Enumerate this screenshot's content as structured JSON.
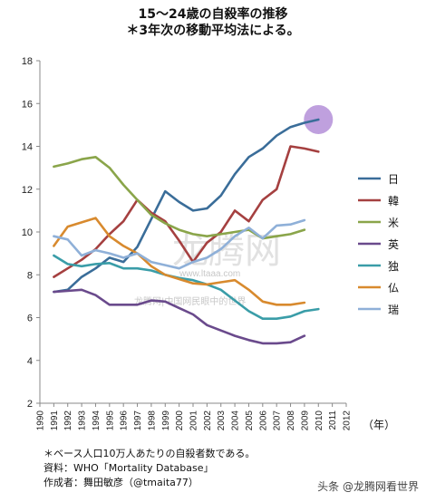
{
  "chart_data": {
    "type": "line",
    "title": "15～24歳の自殺率の推移",
    "subtitle": "＊3年次の移動平均法による。",
    "xlabel": "（年）",
    "ylabel": "",
    "x": [
      1990,
      1991,
      1992,
      1993,
      1994,
      1995,
      1996,
      1997,
      1998,
      1999,
      2000,
      2001,
      2002,
      2003,
      2004,
      2005,
      2006,
      2007,
      2008,
      2009,
      2010,
      2011,
      2012
    ],
    "xlim": [
      1990,
      2012
    ],
    "ylim": [
      2,
      18
    ],
    "yticks": [
      2,
      4,
      6,
      8,
      10,
      12,
      14,
      16,
      18
    ],
    "grid": false,
    "legend_position": "right",
    "series": [
      {
        "name": "日",
        "color": "#3a6d99",
        "values": [
          null,
          7.2,
          7.3,
          7.9,
          8.3,
          8.8,
          8.6,
          9.3,
          10.6,
          11.9,
          11.4,
          11.0,
          11.1,
          11.7,
          12.7,
          13.5,
          13.9,
          14.5,
          14.9,
          15.1,
          15.25,
          null,
          null
        ]
      },
      {
        "name": "韓",
        "color": "#a54040",
        "values": [
          null,
          7.9,
          8.3,
          8.7,
          9.2,
          9.9,
          10.5,
          11.5,
          10.9,
          10.5,
          9.6,
          8.6,
          9.5,
          10.0,
          11.0,
          10.5,
          11.5,
          12.0,
          14.0,
          13.9,
          13.75,
          null,
          null
        ]
      },
      {
        "name": "米",
        "color": "#8aa54a",
        "values": [
          null,
          13.05,
          13.2,
          13.4,
          13.5,
          13.0,
          12.2,
          11.5,
          10.8,
          10.4,
          10.1,
          9.9,
          9.8,
          9.9,
          10.0,
          10.1,
          9.7,
          9.8,
          9.9,
          10.1,
          null,
          null,
          null
        ]
      },
      {
        "name": "英",
        "color": "#6a4a8c",
        "values": [
          null,
          7.2,
          7.25,
          7.3,
          7.05,
          6.6,
          6.6,
          6.6,
          6.8,
          6.75,
          6.45,
          6.15,
          5.65,
          5.4,
          5.15,
          4.95,
          4.8,
          4.8,
          4.85,
          5.15,
          null,
          null,
          null
        ]
      },
      {
        "name": "独",
        "color": "#3a9da8",
        "values": [
          null,
          8.9,
          8.5,
          8.4,
          8.5,
          8.55,
          8.3,
          8.3,
          8.2,
          8.0,
          7.85,
          7.75,
          7.55,
          7.3,
          6.8,
          6.3,
          5.95,
          5.95,
          6.05,
          6.3,
          6.4,
          null,
          null
        ]
      },
      {
        "name": "仏",
        "color": "#d88a2e",
        "values": [
          null,
          9.35,
          10.25,
          10.45,
          10.65,
          9.8,
          9.35,
          9.0,
          8.4,
          8.0,
          7.8,
          7.6,
          7.55,
          7.65,
          7.75,
          7.3,
          6.75,
          6.6,
          6.6,
          6.7,
          null,
          null,
          null
        ]
      },
      {
        "name": "瑞",
        "color": "#8fb0d8",
        "values": [
          null,
          9.8,
          9.65,
          8.9,
          9.15,
          9.0,
          8.8,
          9.0,
          8.6,
          8.45,
          8.3,
          8.6,
          8.8,
          9.2,
          9.8,
          10.2,
          9.7,
          10.3,
          10.35,
          10.55,
          null,
          null,
          null
        ]
      }
    ],
    "highlight": {
      "series": "日",
      "x": 2010,
      "y": 15.25,
      "color": "#b48fd8"
    }
  },
  "footer": {
    "note": "＊ベース人口10万人あたりの自殺者数である。",
    "source": "資料：WHO「Mortality Database」",
    "author": "作成者：舞田敏彦（@tmaita77）"
  },
  "watermark": {
    "site": "龙腾网",
    "domain": "www.ltaaa.com",
    "banner": "龙腾网|中国网民眼中的世界",
    "credit": "头条 @龙腾网看世界"
  }
}
